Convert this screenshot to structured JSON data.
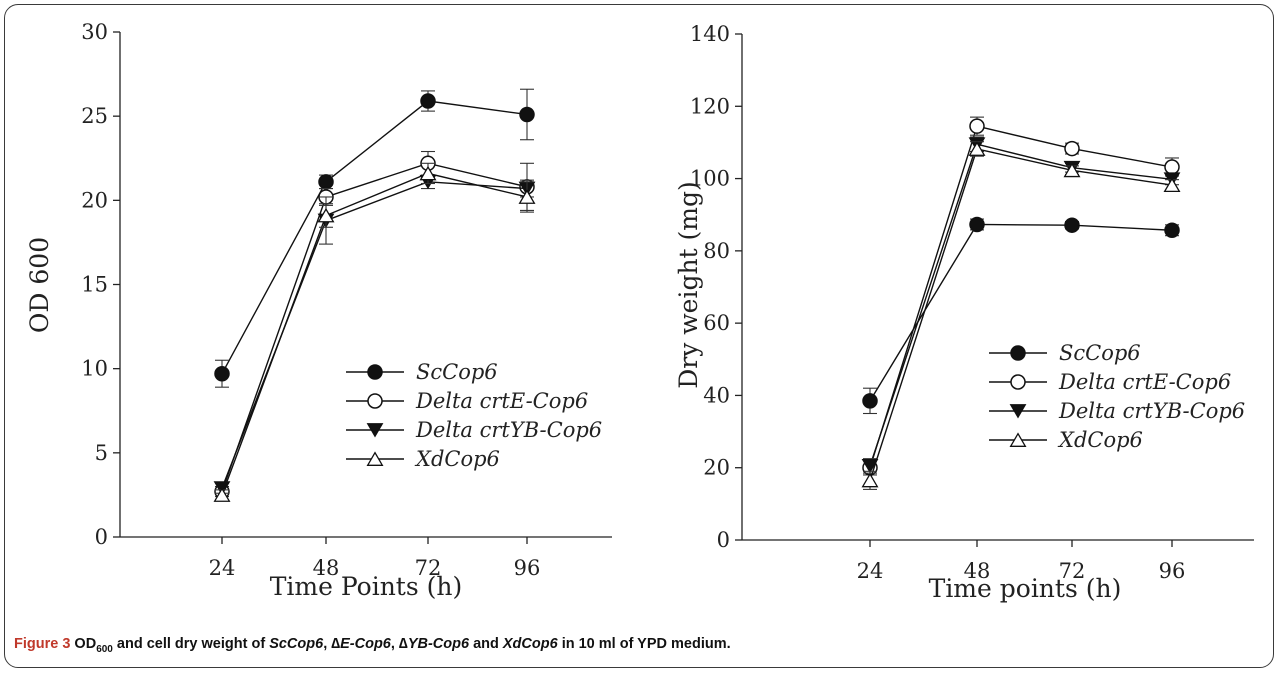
{
  "caption": {
    "label": "Figure 3",
    "parts": [
      {
        "text": " OD",
        "style": "b"
      },
      {
        "text": "600",
        "style": "sub"
      },
      {
        "text": " and cell dry weight of ",
        "style": "b"
      },
      {
        "text": "ScCop6",
        "style": "bi"
      },
      {
        "text": ", ∆",
        "style": "b"
      },
      {
        "text": "E-Cop6",
        "style": "bi"
      },
      {
        "text": ", ∆",
        "style": "b"
      },
      {
        "text": "YB-Cop6",
        "style": "bi"
      },
      {
        "text": " and ",
        "style": "b"
      },
      {
        "text": "XdCop6",
        "style": "bi"
      },
      {
        "text": " in 10 ml of YPD medium.",
        "style": "b"
      }
    ]
  },
  "chart_data": [
    {
      "type": "line",
      "xlabel": "Time Points (h)",
      "ylabel": "OD 600",
      "categories": [
        "24",
        "48",
        "72",
        "96"
      ],
      "ylim": [
        0,
        30
      ],
      "yticks": [
        0,
        5,
        10,
        15,
        20,
        25,
        30
      ],
      "legend_position": "center-right",
      "series": [
        {
          "name": "ScCop6",
          "marker": "circle-filled",
          "values": [
            9.7,
            21.1,
            25.9,
            25.1
          ],
          "errors": [
            0.8,
            0.4,
            0.6,
            1.5
          ]
        },
        {
          "name": "Delta crtE-Cop6",
          "marker": "circle-open",
          "values": [
            2.7,
            20.2,
            22.2,
            20.8
          ],
          "errors": [
            0.3,
            0.5,
            0.7,
            1.4
          ]
        },
        {
          "name": "Delta crtYB-Cop6",
          "marker": "triangle-down-filled",
          "values": [
            2.9,
            18.8,
            21.1,
            20.7
          ],
          "errors": [
            0.3,
            1.4,
            0.4,
            0.5
          ]
        },
        {
          "name": "XdCop6",
          "marker": "triangle-up-open",
          "values": [
            2.5,
            19.1,
            21.6,
            20.2
          ],
          "errors": [
            0.3,
            0.7,
            0.6,
            0.9
          ]
        }
      ]
    },
    {
      "type": "line",
      "xlabel": "Time points (h)",
      "ylabel": "Dry weight (mg)",
      "categories": [
        "24",
        "48",
        "72",
        "96"
      ],
      "ylim": [
        0,
        140
      ],
      "yticks": [
        0,
        20,
        40,
        60,
        80,
        100,
        120,
        140
      ],
      "legend_position": "center-right",
      "series": [
        {
          "name": "ScCop6",
          "marker": "circle-filled",
          "values": [
            38.5,
            87.3,
            87.1,
            85.7
          ],
          "errors": [
            3.5,
            1.5,
            1.0,
            1.5
          ]
        },
        {
          "name": "Delta crtE-Cop6",
          "marker": "circle-open",
          "values": [
            20.0,
            114.5,
            108.3,
            103.2
          ],
          "errors": [
            2.0,
            2.5,
            1.5,
            2.5
          ]
        },
        {
          "name": "Delta crtYB-Cop6",
          "marker": "triangle-down-filled",
          "values": [
            20.5,
            109.5,
            103.0,
            99.8
          ],
          "errors": [
            2.0,
            2.0,
            1.2,
            1.5
          ]
        },
        {
          "name": "XdCop6",
          "marker": "triangle-up-open",
          "values": [
            16.5,
            108.2,
            102.3,
            98.2
          ],
          "errors": [
            2.5,
            2.0,
            1.2,
            1.5
          ]
        }
      ]
    }
  ]
}
